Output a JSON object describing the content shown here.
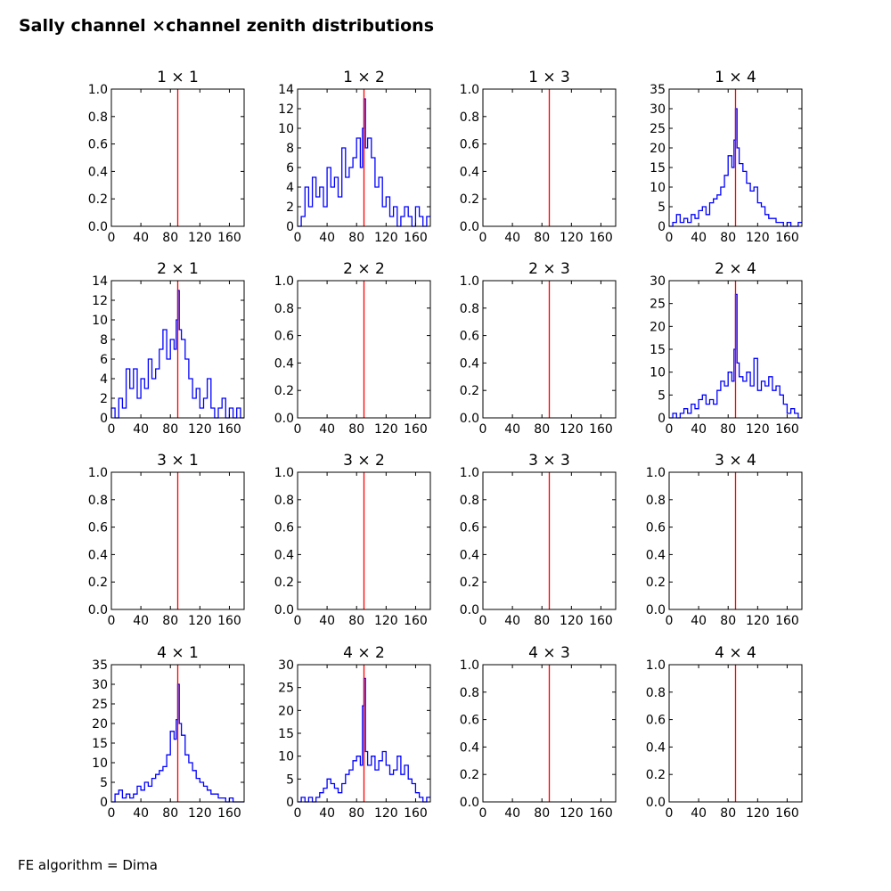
{
  "title": "Sally channel ×channel zenith distributions",
  "footer": "FE algorithm = Dima",
  "colors": {
    "histogram": "#0000ff",
    "marker_line": "#ff0000",
    "axes": "#000000"
  },
  "chart_data": [
    {
      "title": "1  × 1",
      "type": "line",
      "xlim": [
        0,
        180
      ],
      "ylim": [
        0,
        1.0
      ],
      "xticks": [
        0,
        40,
        80,
        120,
        160
      ],
      "yticks": [
        0.0,
        0.2,
        0.4,
        0.6,
        0.8,
        1.0
      ],
      "vline": 90,
      "series": []
    },
    {
      "title": "1  × 2",
      "type": "line",
      "xlim": [
        0,
        180
      ],
      "ylim": [
        0,
        14
      ],
      "xticks": [
        0,
        40,
        80,
        120,
        160
      ],
      "yticks": [
        0,
        2,
        4,
        6,
        8,
        10,
        12,
        14
      ],
      "vline": 90,
      "series": [
        {
          "x": [
            0,
            5,
            10,
            15,
            20,
            25,
            30,
            35,
            40,
            45,
            50,
            55,
            60,
            65,
            70,
            75,
            80,
            85,
            88,
            90,
            92,
            95,
            100,
            105,
            110,
            115,
            120,
            125,
            130,
            135,
            140,
            145,
            150,
            155,
            160,
            165,
            170,
            175
          ],
          "y": [
            0,
            1,
            4,
            2,
            5,
            3,
            4,
            2,
            6,
            4,
            5,
            3,
            8,
            5,
            6,
            7,
            9,
            6,
            10,
            13,
            8,
            9,
            7,
            4,
            5,
            2,
            3,
            1,
            2,
            0,
            1,
            2,
            1,
            0,
            2,
            1,
            0,
            1
          ]
        }
      ]
    },
    {
      "title": "1  × 3",
      "type": "line",
      "xlim": [
        0,
        180
      ],
      "ylim": [
        0,
        1.0
      ],
      "xticks": [
        0,
        40,
        80,
        120,
        160
      ],
      "yticks": [
        0.0,
        0.2,
        0.4,
        0.6,
        0.8,
        1.0
      ],
      "vline": 90,
      "series": []
    },
    {
      "title": "1  × 4",
      "type": "line",
      "xlim": [
        0,
        180
      ],
      "ylim": [
        0,
        35
      ],
      "xticks": [
        0,
        40,
        80,
        120,
        160
      ],
      "yticks": [
        0,
        5,
        10,
        15,
        20,
        25,
        30,
        35
      ],
      "vline": 90,
      "series": [
        {
          "x": [
            0,
            5,
            10,
            15,
            20,
            25,
            30,
            35,
            40,
            45,
            50,
            55,
            60,
            65,
            70,
            75,
            80,
            85,
            88,
            90,
            92,
            95,
            100,
            105,
            110,
            115,
            120,
            125,
            130,
            135,
            140,
            145,
            150,
            155,
            160,
            165,
            170,
            175
          ],
          "y": [
            0,
            1,
            3,
            1,
            2,
            1,
            3,
            2,
            4,
            5,
            3,
            6,
            7,
            8,
            10,
            13,
            18,
            15,
            22,
            30,
            20,
            16,
            14,
            11,
            9,
            10,
            6,
            5,
            3,
            2,
            2,
            1,
            1,
            0,
            1,
            0,
            0,
            1
          ]
        }
      ]
    },
    {
      "title": "2  × 1",
      "type": "line",
      "xlim": [
        0,
        180
      ],
      "ylim": [
        0,
        14
      ],
      "xticks": [
        0,
        40,
        80,
        120,
        160
      ],
      "yticks": [
        0,
        2,
        4,
        6,
        8,
        10,
        12,
        14
      ],
      "vline": 90,
      "series": [
        {
          "x": [
            0,
            5,
            10,
            15,
            20,
            25,
            30,
            35,
            40,
            45,
            50,
            55,
            60,
            65,
            70,
            75,
            80,
            85,
            88,
            90,
            92,
            95,
            100,
            105,
            110,
            115,
            120,
            125,
            130,
            135,
            140,
            145,
            150,
            155,
            160,
            165,
            170,
            175
          ],
          "y": [
            1,
            0,
            2,
            1,
            5,
            3,
            5,
            2,
            4,
            3,
            6,
            4,
            5,
            7,
            9,
            6,
            8,
            7,
            10,
            13,
            9,
            8,
            6,
            4,
            2,
            3,
            1,
            2,
            4,
            1,
            0,
            1,
            2,
            0,
            1,
            0,
            1,
            0
          ]
        }
      ]
    },
    {
      "title": "2  × 2",
      "type": "line",
      "xlim": [
        0,
        180
      ],
      "ylim": [
        0,
        1.0
      ],
      "xticks": [
        0,
        40,
        80,
        120,
        160
      ],
      "yticks": [
        0.0,
        0.2,
        0.4,
        0.6,
        0.8,
        1.0
      ],
      "vline": 90,
      "series": []
    },
    {
      "title": "2  × 3",
      "type": "line",
      "xlim": [
        0,
        180
      ],
      "ylim": [
        0,
        1.0
      ],
      "xticks": [
        0,
        40,
        80,
        120,
        160
      ],
      "yticks": [
        0.0,
        0.2,
        0.4,
        0.6,
        0.8,
        1.0
      ],
      "vline": 90,
      "series": []
    },
    {
      "title": "2  × 4",
      "type": "line",
      "xlim": [
        0,
        180
      ],
      "ylim": [
        0,
        30
      ],
      "xticks": [
        0,
        40,
        80,
        120,
        160
      ],
      "yticks": [
        0,
        5,
        10,
        15,
        20,
        25,
        30
      ],
      "vline": 90,
      "series": [
        {
          "x": [
            0,
            5,
            10,
            15,
            20,
            25,
            30,
            35,
            40,
            45,
            50,
            55,
            60,
            65,
            70,
            75,
            80,
            85,
            88,
            90,
            92,
            95,
            100,
            105,
            110,
            115,
            120,
            125,
            130,
            135,
            140,
            145,
            150,
            155,
            160,
            165,
            170,
            175
          ],
          "y": [
            0,
            1,
            0,
            1,
            2,
            1,
            3,
            2,
            4,
            5,
            3,
            4,
            3,
            6,
            8,
            7,
            10,
            8,
            15,
            27,
            12,
            9,
            8,
            10,
            7,
            13,
            6,
            8,
            7,
            9,
            6,
            7,
            5,
            3,
            1,
            2,
            1,
            0
          ]
        }
      ]
    },
    {
      "title": "3  × 1",
      "type": "line",
      "xlim": [
        0,
        180
      ],
      "ylim": [
        0,
        1.0
      ],
      "xticks": [
        0,
        40,
        80,
        120,
        160
      ],
      "yticks": [
        0.0,
        0.2,
        0.4,
        0.6,
        0.8,
        1.0
      ],
      "vline": 90,
      "series": []
    },
    {
      "title": "3  × 2",
      "type": "line",
      "xlim": [
        0,
        180
      ],
      "ylim": [
        0,
        1.0
      ],
      "xticks": [
        0,
        40,
        80,
        120,
        160
      ],
      "yticks": [
        0.0,
        0.2,
        0.4,
        0.6,
        0.8,
        1.0
      ],
      "vline": 90,
      "series": []
    },
    {
      "title": "3  × 3",
      "type": "line",
      "xlim": [
        0,
        180
      ],
      "ylim": [
        0,
        1.0
      ],
      "xticks": [
        0,
        40,
        80,
        120,
        160
      ],
      "yticks": [
        0.0,
        0.2,
        0.4,
        0.6,
        0.8,
        1.0
      ],
      "vline": 90,
      "series": []
    },
    {
      "title": "3  × 4",
      "type": "line",
      "xlim": [
        0,
        180
      ],
      "ylim": [
        0,
        1.0
      ],
      "xticks": [
        0,
        40,
        80,
        120,
        160
      ],
      "yticks": [
        0.0,
        0.2,
        0.4,
        0.6,
        0.8,
        1.0
      ],
      "vline": 90,
      "series": []
    },
    {
      "title": "4  × 1",
      "type": "line",
      "xlim": [
        0,
        180
      ],
      "ylim": [
        0,
        35
      ],
      "xticks": [
        0,
        40,
        80,
        120,
        160
      ],
      "yticks": [
        0,
        5,
        10,
        15,
        20,
        25,
        30,
        35
      ],
      "vline": 90,
      "series": [
        {
          "x": [
            0,
            5,
            10,
            15,
            20,
            25,
            30,
            35,
            40,
            45,
            50,
            55,
            60,
            65,
            70,
            75,
            80,
            85,
            88,
            90,
            92,
            95,
            100,
            105,
            110,
            115,
            120,
            125,
            130,
            135,
            140,
            145,
            150,
            155,
            160,
            165,
            170,
            175
          ],
          "y": [
            0,
            2,
            3,
            1,
            2,
            1,
            2,
            4,
            3,
            5,
            4,
            6,
            7,
            8,
            9,
            12,
            18,
            16,
            21,
            30,
            20,
            17,
            12,
            10,
            8,
            6,
            5,
            4,
            3,
            2,
            2,
            1,
            1,
            0,
            1,
            0,
            0,
            0
          ]
        }
      ]
    },
    {
      "title": "4  × 2",
      "type": "line",
      "xlim": [
        0,
        180
      ],
      "ylim": [
        0,
        30
      ],
      "xticks": [
        0,
        40,
        80,
        120,
        160
      ],
      "yticks": [
        0,
        5,
        10,
        15,
        20,
        25,
        30
      ],
      "vline": 90,
      "series": [
        {
          "x": [
            0,
            5,
            10,
            15,
            20,
            25,
            30,
            35,
            40,
            45,
            50,
            55,
            60,
            65,
            70,
            75,
            80,
            85,
            88,
            90,
            92,
            95,
            100,
            105,
            110,
            115,
            120,
            125,
            130,
            135,
            140,
            145,
            150,
            155,
            160,
            165,
            170,
            175
          ],
          "y": [
            0,
            1,
            0,
            1,
            0,
            1,
            2,
            3,
            5,
            4,
            3,
            2,
            4,
            6,
            7,
            9,
            10,
            8,
            21,
            27,
            11,
            8,
            10,
            7,
            9,
            11,
            8,
            6,
            7,
            10,
            6,
            8,
            5,
            4,
            2,
            1,
            0,
            1
          ]
        }
      ]
    },
    {
      "title": "4  × 3",
      "type": "line",
      "xlim": [
        0,
        180
      ],
      "ylim": [
        0,
        1.0
      ],
      "xticks": [
        0,
        40,
        80,
        120,
        160
      ],
      "yticks": [
        0.0,
        0.2,
        0.4,
        0.6,
        0.8,
        1.0
      ],
      "vline": 90,
      "series": []
    },
    {
      "title": "4  × 4",
      "type": "line",
      "xlim": [
        0,
        180
      ],
      "ylim": [
        0,
        1.0
      ],
      "xticks": [
        0,
        40,
        80,
        120,
        160
      ],
      "yticks": [
        0.0,
        0.2,
        0.4,
        0.6,
        0.8,
        1.0
      ],
      "vline": 90,
      "series": []
    }
  ]
}
